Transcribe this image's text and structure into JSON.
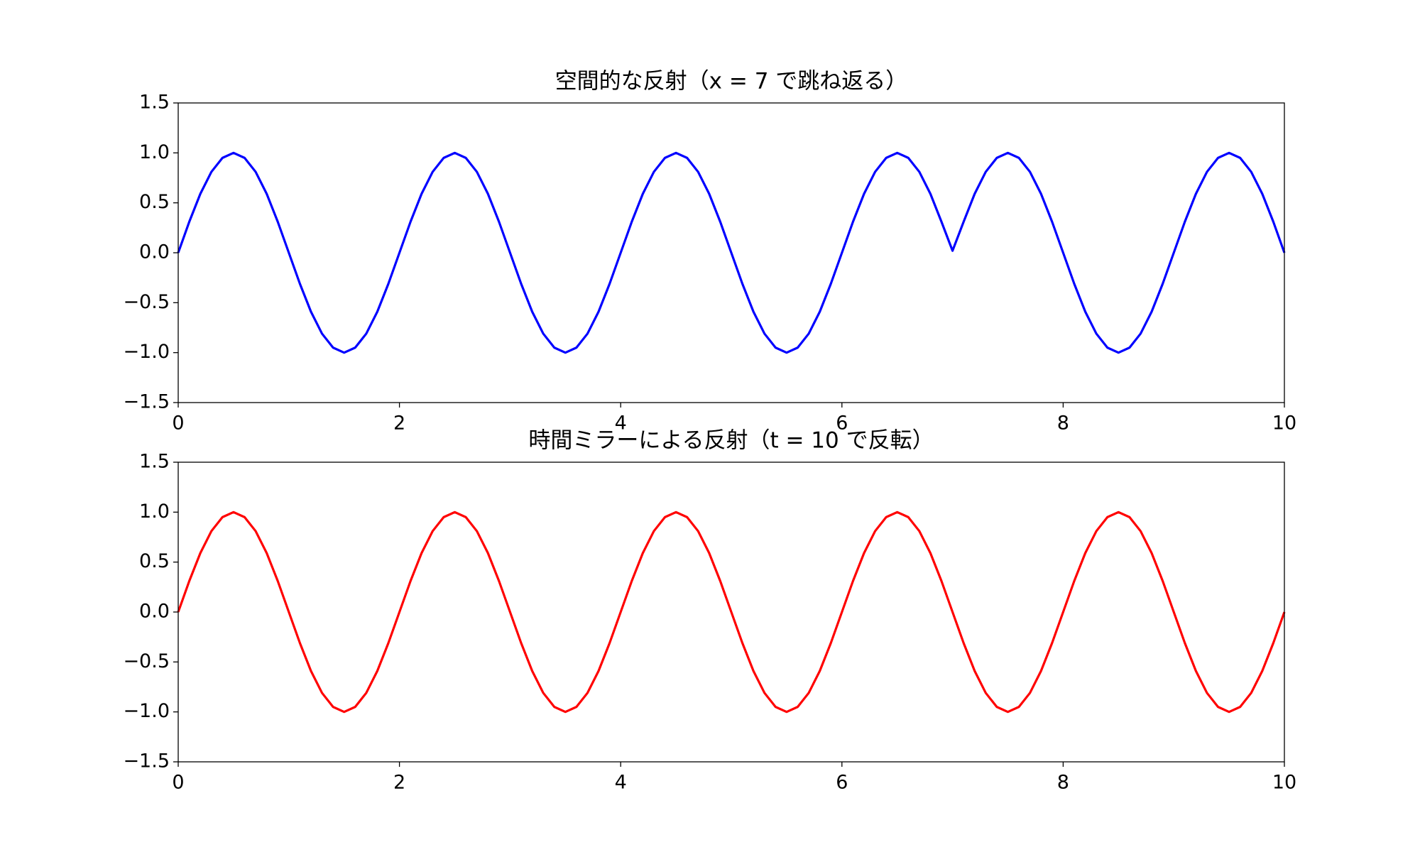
{
  "chart_data": [
    {
      "type": "line",
      "title": "空間的な反射（x = 7 で跳ね返る）",
      "x": [
        0,
        0.1,
        0.2,
        0.3,
        0.4,
        0.5,
        0.6,
        0.7,
        0.8,
        0.9,
        1,
        1.1,
        1.2,
        1.3,
        1.4,
        1.5,
        1.6,
        1.7,
        1.8,
        1.9,
        2,
        2.1,
        2.2,
        2.3,
        2.4,
        2.5,
        2.6,
        2.7,
        2.8,
        2.9,
        3,
        3.1,
        3.2,
        3.3,
        3.4,
        3.5,
        3.6,
        3.7,
        3.8,
        3.9,
        4,
        4.1,
        4.2,
        4.3,
        4.4,
        4.5,
        4.6,
        4.7,
        4.8,
        4.9,
        5,
        5.1,
        5.2,
        5.3,
        5.4,
        5.5,
        5.6,
        5.7,
        5.8,
        5.9,
        6,
        6.1,
        6.2,
        6.3,
        6.4,
        6.5,
        6.6,
        6.7,
        6.8,
        6.9,
        7,
        7.1,
        7.2,
        7.3,
        7.4,
        7.5,
        7.6,
        7.7,
        7.8,
        7.9,
        8,
        8.1,
        8.2,
        8.3,
        8.4,
        8.5,
        8.6,
        8.7,
        8.8,
        8.9,
        9,
        9.1,
        9.2,
        9.3,
        9.4,
        9.5,
        9.6,
        9.7,
        9.8,
        9.9,
        10
      ],
      "series": [
        {
          "color": "#0000ff",
          "values": [
            0,
            0.31,
            0.59,
            0.81,
            0.95,
            1,
            0.95,
            0.81,
            0.59,
            0.31,
            0,
            -0.31,
            -0.59,
            -0.81,
            -0.95,
            -1,
            -0.95,
            -0.81,
            -0.59,
            -0.31,
            0,
            0.31,
            0.59,
            0.81,
            0.95,
            1,
            0.95,
            0.81,
            0.59,
            0.31,
            0,
            -0.31,
            -0.59,
            -0.81,
            -0.95,
            -1,
            -0.95,
            -0.81,
            -0.59,
            -0.31,
            0,
            0.31,
            0.59,
            0.81,
            0.95,
            1,
            0.95,
            0.81,
            0.59,
            0.31,
            0,
            -0.31,
            -0.59,
            -0.81,
            -0.95,
            -1,
            -0.95,
            -0.81,
            -0.59,
            -0.31,
            0,
            0.31,
            0.59,
            0.81,
            0.95,
            1,
            0.95,
            0.81,
            0.59,
            0.31,
            0.02,
            0.31,
            0.59,
            0.81,
            0.95,
            1,
            0.95,
            0.81,
            0.59,
            0.31,
            0,
            -0.31,
            -0.59,
            -0.81,
            -0.95,
            -1,
            -0.95,
            -0.81,
            -0.59,
            -0.31,
            0,
            0.31,
            0.59,
            0.81,
            0.95,
            1,
            0.95,
            0.81,
            0.59,
            0.31,
            0
          ]
        }
      ],
      "xlim": [
        0,
        10
      ],
      "xticks": [
        0,
        2,
        4,
        6,
        8,
        10
      ],
      "ylim": [
        -1.5,
        1.5
      ],
      "yticks": [
        {
          "value": -1.5,
          "label": "−1.5"
        },
        {
          "value": -1,
          "label": "−1.0"
        },
        {
          "value": -0.5,
          "label": "−0.5"
        },
        {
          "value": 0,
          "label": "0.0"
        },
        {
          "value": 0.5,
          "label": "0.5"
        },
        {
          "value": 1,
          "label": "1.0"
        },
        {
          "value": 1.5,
          "label": "1.5"
        }
      ]
    },
    {
      "type": "line",
      "title": "時間ミラーによる反射（t = 10 で反転）",
      "x": [
        0,
        0.1,
        0.2,
        0.3,
        0.4,
        0.5,
        0.6,
        0.7,
        0.8,
        0.9,
        1,
        1.1,
        1.2,
        1.3,
        1.4,
        1.5,
        1.6,
        1.7,
        1.8,
        1.9,
        2,
        2.1,
        2.2,
        2.3,
        2.4,
        2.5,
        2.6,
        2.7,
        2.8,
        2.9,
        3,
        3.1,
        3.2,
        3.3,
        3.4,
        3.5,
        3.6,
        3.7,
        3.8,
        3.9,
        4,
        4.1,
        4.2,
        4.3,
        4.4,
        4.5,
        4.6,
        4.7,
        4.8,
        4.9,
        5,
        5.1,
        5.2,
        5.3,
        5.4,
        5.5,
        5.6,
        5.7,
        5.8,
        5.9,
        6,
        6.1,
        6.2,
        6.3,
        6.4,
        6.5,
        6.6,
        6.7,
        6.8,
        6.9,
        7,
        7.1,
        7.2,
        7.3,
        7.4,
        7.5,
        7.6,
        7.7,
        7.8,
        7.9,
        8,
        8.1,
        8.2,
        8.3,
        8.4,
        8.5,
        8.6,
        8.7,
        8.8,
        8.9,
        9,
        9.1,
        9.2,
        9.3,
        9.4,
        9.5,
        9.6,
        9.7,
        9.8,
        9.9,
        10
      ],
      "series": [
        {
          "color": "#ff0000",
          "values": [
            0,
            0.31,
            0.59,
            0.81,
            0.95,
            1,
            0.95,
            0.81,
            0.59,
            0.31,
            0,
            -0.31,
            -0.59,
            -0.81,
            -0.95,
            -1,
            -0.95,
            -0.81,
            -0.59,
            -0.31,
            0,
            0.31,
            0.59,
            0.81,
            0.95,
            1,
            0.95,
            0.81,
            0.59,
            0.31,
            0,
            -0.31,
            -0.59,
            -0.81,
            -0.95,
            -1,
            -0.95,
            -0.81,
            -0.59,
            -0.31,
            0,
            0.31,
            0.59,
            0.81,
            0.95,
            1,
            0.95,
            0.81,
            0.59,
            0.31,
            0,
            -0.31,
            -0.59,
            -0.81,
            -0.95,
            -1,
            -0.95,
            -0.81,
            -0.59,
            -0.31,
            0,
            0.31,
            0.59,
            0.81,
            0.95,
            1,
            0.95,
            0.81,
            0.59,
            0.31,
            0,
            -0.31,
            -0.59,
            -0.81,
            -0.95,
            -1,
            -0.95,
            -0.81,
            -0.59,
            -0.31,
            0,
            0.31,
            0.59,
            0.81,
            0.95,
            1,
            0.95,
            0.81,
            0.59,
            0.31,
            0,
            -0.31,
            -0.59,
            -0.81,
            -0.95,
            -1,
            -0.95,
            -0.81,
            -0.59,
            -0.31,
            0
          ]
        }
      ],
      "xlim": [
        0,
        10
      ],
      "xticks": [
        0,
        2,
        4,
        6,
        8,
        10
      ],
      "ylim": [
        -1.5,
        1.5
      ],
      "yticks": [
        {
          "value": -1.5,
          "label": "−1.5"
        },
        {
          "value": -1,
          "label": "−1.0"
        },
        {
          "value": -0.5,
          "label": "−0.5"
        },
        {
          "value": 0,
          "label": "0.0"
        },
        {
          "value": 0.5,
          "label": "0.5"
        },
        {
          "value": 1,
          "label": "1.0"
        },
        {
          "value": 1.5,
          "label": "1.5"
        }
      ]
    }
  ]
}
